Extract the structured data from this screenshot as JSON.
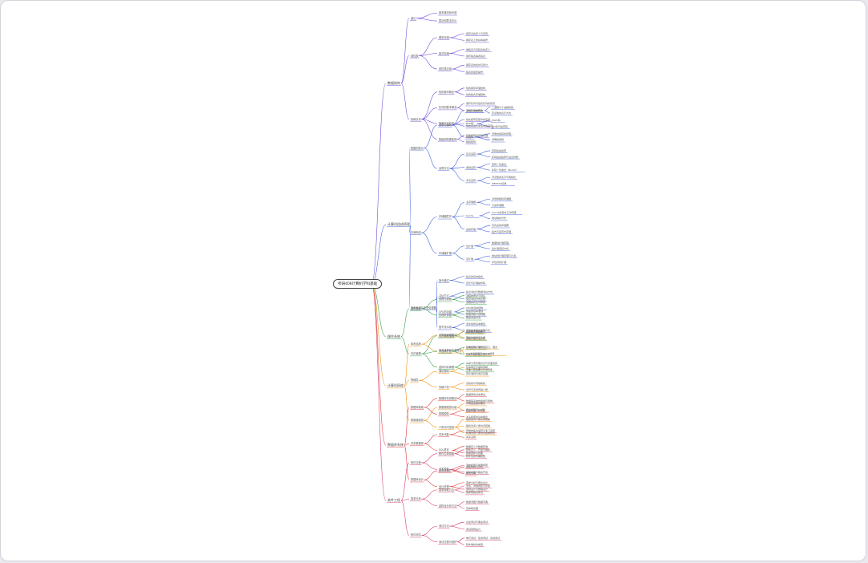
{
  "mindmap": {
    "root": "考研408计算机学科基础",
    "colors": [
      "#6c3fd8",
      "#3b5bdb",
      "#2f9e44",
      "#f08c00",
      "#e03131",
      "#d6336c"
    ],
    "branches": [
      {
        "label": "数据结构",
        "children": [
          {
            "label": "绪论",
            "children": [
              {
                "label": "基本概念和术语"
              },
              {
                "label": "算法和算法评价"
              }
            ]
          },
          {
            "label": "线性表",
            "children": [
              {
                "label": "顺序存储",
                "children": [
                  {
                    "label": "顺序表的定义与实现"
                  },
                  {
                    "label": "顺序表上的基本操作"
                  }
                ]
              },
              {
                "label": "链式存储",
                "children": [
                  {
                    "label": "单链表与双链表的定义"
                  },
                  {
                    "label": "循环链表静态链表"
                  }
                ]
              },
              {
                "label": "线性表应用",
                "children": [
                  {
                    "label": "顺序表的合并与拆分"
                  },
                  {
                    "label": "链表的逆置操作"
                  }
                ]
              }
            ]
          },
          {
            "label": "栈和队列",
            "children": [
              {
                "label": "栈的基本概念",
                "children": [
                  {
                    "label": "栈的顺序存储结构"
                  },
                  {
                    "label": "栈的链式存储结构"
                  }
                ]
              },
              {
                "label": "队列的基本概念",
                "children": [
                  {
                    "label": "循环队列与链式队列的实现"
                  },
                  {
                    "label": "双端队列的概念"
                  }
                ]
              },
              {
                "label": "栈和队列应用",
                "children": [
                  {
                    "label": "栈在括号匹配中的应用"
                  },
                  {
                    "label": "栈在表达式求值中的应用"
                  }
                ]
              },
              {
                "label": "数组和特殊矩阵",
                "children": [
                  {
                    "label": "特殊矩阵的压缩存储"
                  },
                  {
                    "label": "稀疏矩阵"
                  }
                ]
              }
            ]
          }
        ]
      },
      {
        "label": "计算机组成原理",
        "children": [
          {
            "label": "数据的表示",
            "children": [
              {
                "label": "进制与编码",
                "children": [
                  {
                    "label": "进位计数制转换",
                    "children": [
                      {
                        "label": "二进制与十进制转换"
                      },
                      {
                        "label": "定点数的表示方法"
                      }
                    ]
                  },
                  {
                    "label": "BCD码",
                    "children": [
                      {
                        "label": "8421码"
                      },
                      {
                        "label": "余3码与格雷码"
                      }
                    ]
                  },
                  {
                    "label": "校验码",
                    "children": [
                      {
                        "label": "奇偶校验码的原理"
                      },
                      {
                        "label": "海明校验码"
                      }
                    ]
                  }
                ]
              },
              {
                "label": "运算方法",
                "children": [
                  {
                    "label": "定点运算",
                    "children": [
                      {
                        "label": "原码加减运算"
                      },
                      {
                        "label": "补码加减运算与溢出判断"
                      }
                    ]
                  },
                  {
                    "label": "乘除运算",
                    "children": [
                      {
                        "label": "原码一位乘法"
                      },
                      {
                        "label": "补码一位乘法（Booth）"
                      }
                    ]
                  },
                  {
                    "label": "浮点运算",
                    "children": [
                      {
                        "label": "浮点数的表示与规格化"
                      },
                      {
                        "label": "IEEE754标准"
                      }
                    ]
                  }
                ]
              }
            ]
          },
          {
            "label": "存储系统",
            "children": [
              {
                "label": "存储器层次",
                "children": [
                  {
                    "label": "主存储器",
                    "children": [
                      {
                        "label": "半导体随机存储器"
                      },
                      {
                        "label": "只读存储器"
                      }
                    ]
                  },
                  {
                    "label": "Cache",
                    "children": [
                      {
                        "label": "Cache的基本工作原理"
                      },
                      {
                        "label": "地址映射方式"
                      }
                    ]
                  },
                  {
                    "label": "虚拟存储",
                    "children": [
                      {
                        "label": "页式虚拟存储器"
                      },
                      {
                        "label": "段式与段页式存储"
                      }
                    ]
                  }
                ]
              },
              {
                "label": "存储器扩展",
                "children": [
                  {
                    "label": "位扩展",
                    "children": [
                      {
                        "label": "数据线扩展原理"
                      },
                      {
                        "label": "位扩展连接方式"
                      }
                    ]
                  },
                  {
                    "label": "字扩展",
                    "children": [
                      {
                        "label": "地址线扩展原理与片选"
                      },
                      {
                        "label": "字位同时扩展"
                      }
                    ]
                  }
                ]
              }
            ]
          },
          {
            "label": "指令系统与中央处理器",
            "children": [
              {
                "label": "指令格式",
                "children": [
                  {
                    "label": "指令的基本格式"
                  },
                  {
                    "label": "定长与扩展操作码"
                  }
                ]
              },
              {
                "label": "寻址方式",
                "children": [
                  {
                    "label": "指令寻址与数据寻址方式"
                  },
                  {
                    "label": "常见寻址方式比较"
                  }
                ]
              },
              {
                "label": "CPU的功能",
                "children": [
                  {
                    "label": "CPU的基本结构"
                  },
                  {
                    "label": "数据通路与控制器"
                  }
                ]
              },
              {
                "label": "指令流水线",
                "children": [
                  {
                    "label": "流水线的基本概念"
                  },
                  {
                    "label": "流水线冲突与处理方法"
                  }
                ]
              }
            ]
          }
        ]
      },
      {
        "label": "操作系统",
        "children": [
          {
            "label": "进程管理",
            "children": [
              {
                "label": "进程与线程",
                "children": [
                  {
                    "label": "进程的概念与特征"
                  },
                  {
                    "label": "进程的状态与转换"
                  }
                ]
              },
              {
                "label": "处理机调度",
                "children": [
                  {
                    "label": "调度的基本准则"
                  },
                  {
                    "label": "典型调度算法"
                  }
                ]
              }
            ]
          },
          {
            "label": "内存管理",
            "children": [
              {
                "label": "内存管理基础",
                "children": [
                  {
                    "label": "程序装入与链接"
                  },
                  {
                    "label": "连续分配管理方式"
                  }
                ]
              },
              {
                "label": "非连续分配",
                "children": [
                  {
                    "label": "基本分页存储管理"
                  },
                  {
                    "label": "基本分段存储管理方式"
                  }
                ]
              },
              {
                "label": "虚拟内存管理",
                "children": [
                  {
                    "label": "请求分页管理方式与页面置换"
                  },
                  {
                    "label": "页面分配策略与抖动现象"
                  }
                ]
              }
            ]
          }
        ]
      },
      {
        "label": "计算机网络",
        "children": [
          {
            "label": "体系结构",
            "children": [
              {
                "label": "计算机网络概述",
                "children": [
                  {
                    "label": "计算机网络的概念"
                  },
                  {
                    "label": "网络的组成与功能"
                  }
                ]
              },
              {
                "label": "体系结构与参考模型",
                "children": [
                  {
                    "label": "分层结构、协议、接口、服务"
                  },
                  {
                    "label": "OSI参考模型与TCP/IP模型"
                  }
                ]
              }
            ]
          },
          {
            "label": "物理层",
            "children": [
              {
                "label": "通信基础",
                "children": [
                  {
                    "label": "基本概念与编码调制"
                  },
                  {
                    "label": "奈氏准则与香农定理"
                  }
                ]
              },
              {
                "label": "传输介质",
                "children": [
                  {
                    "label": "双绞线与同轴电缆"
                  },
                  {
                    "label": "光纤与无线传输介质"
                  }
                ]
              }
            ]
          },
          {
            "label": "数据链路层",
            "children": [
              {
                "label": "数据链路层功能",
                "children": [
                  {
                    "label": "为网络层提供服务"
                  },
                  {
                    "label": "链路管理与帧定界"
                  }
                ]
              },
              {
                "label": "介质访问控制",
                "children": [
                  {
                    "label": "信道划分介质访问控制"
                  },
                  {
                    "label": "随机访问介质访问控制"
                  },
                  {
                    "label": "轮询访问介质访问控制协议"
                  }
                ]
              }
            ]
          }
        ]
      },
      {
        "label": "数据库系统",
        "children": [
          {
            "label": "数据库基础",
            "children": [
              {
                "label": "数据库系统概述",
                "children": [
                  {
                    "label": "数据库的基本概念"
                  },
                  {
                    "label": "数据库系统的组成与结构"
                  }
                ]
              },
              {
                "label": "数据模型",
                "children": [
                  {
                    "label": "概念模型与E-R图"
                  },
                  {
                    "label": "关系模型的基本概念"
                  }
                ]
              }
            ]
          },
          {
            "label": "关系数据库",
            "children": [
              {
                "label": "关系代数",
                "children": [
                  {
                    "label": "传统的集合运算与专门运算"
                  },
                  {
                    "label": "关系演算"
                  }
                ]
              },
              {
                "label": "SQL语言",
                "children": [
                  {
                    "label": "数据定义与数据查询"
                  },
                  {
                    "label": "数据更新与视图"
                  }
                ]
              }
            ]
          },
          {
            "label": "数据库设计",
            "children": [
              {
                "label": "规范化理论",
                "children": [
                  {
                    "label": "函数依赖与范式"
                  },
                  {
                    "label": "模式分解"
                  }
                ]
              },
              {
                "label": "设计步骤",
                "children": [
                  {
                    "label": "需求分析与概念设计"
                  },
                  {
                    "label": "逻辑设计与物理设计"
                  }
                ]
              }
            ]
          }
        ]
      },
      {
        "label": "软件工程",
        "children": [
          {
            "label": "软件过程",
            "children": [
              {
                "label": "软件生命周期",
                "children": [
                  {
                    "label": "软件定义、开发与维护"
                  },
                  {
                    "label": "软件生命周期模型"
                  }
                ]
              },
              {
                "label": "开发模型",
                "children": [
                  {
                    "label": "瀑布模型与增量模型"
                  },
                  {
                    "label": "螺旋模型与敏捷开发"
                  }
                ]
              }
            ]
          },
          {
            "label": "需求分析",
            "children": [
              {
                "label": "需求获取方法",
                "children": [
                  {
                    "label": "访谈、问卷调查与原型"
                  },
                  {
                    "label": "需求规格说明书"
                  }
                ]
              },
              {
                "label": "结构化分析方法",
                "children": [
                  {
                    "label": "数据流图与数据字典"
                  },
                  {
                    "label": "实体联系图"
                  }
                ]
              }
            ]
          },
          {
            "label": "软件测试",
            "children": [
              {
                "label": "测试方法",
                "children": [
                  {
                    "label": "白盒测试与黑盒测试"
                  },
                  {
                    "label": "测试用例设计"
                  }
                ]
              },
              {
                "label": "测试过程与维护",
                "children": [
                  {
                    "label": "单元测试、集成测试、系统测试"
                  },
                  {
                    "label": "软件维护的类型"
                  }
                ]
              }
            ]
          }
        ]
      }
    ]
  }
}
